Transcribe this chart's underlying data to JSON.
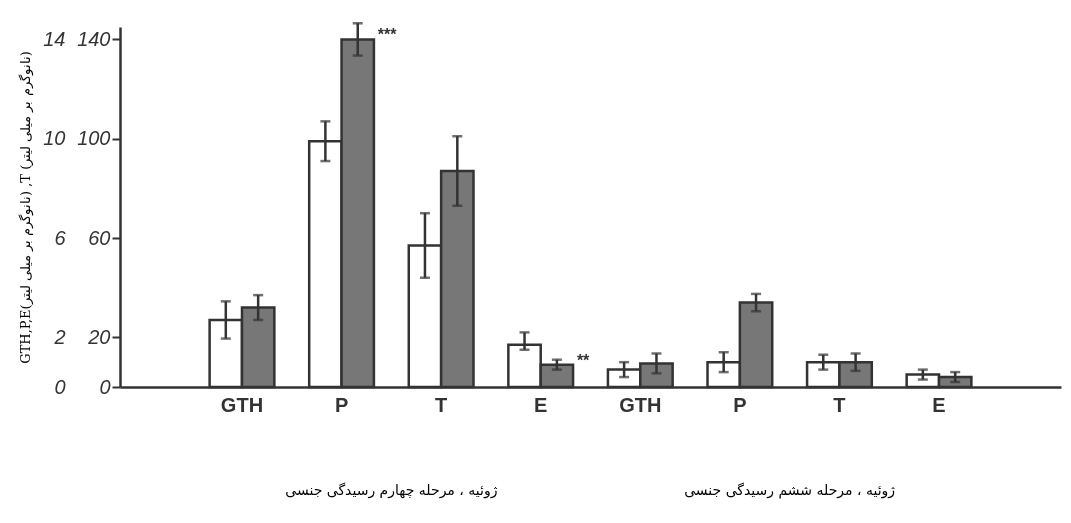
{
  "chart_data": {
    "type": "bar",
    "ylabel": "GTH,P,E(نانوگرم بر میلی لیتر) ,T (نانوگرم بر میلی لیتر)",
    "categories": [
      "GTH",
      "P",
      "T",
      "E",
      "GTH",
      "P",
      "T",
      "E"
    ],
    "series": [
      {
        "color": "#ffffff",
        "values": [
          2.7,
          9.9,
          5.7,
          1.7,
          0.7,
          1.0,
          1.0,
          0.5
        ],
        "errors": [
          0.75,
          0.8,
          1.3,
          [
            1.5,
            2.2
          ],
          0.3,
          0.4,
          0.3,
          0.2
        ]
      },
      {
        "color": "#777777",
        "values": [
          3.2,
          14.0,
          8.7,
          0.9,
          0.95,
          3.4,
          1.0,
          0.4
        ],
        "errors": [
          0.5,
          0.65,
          1.4,
          0.2,
          0.4,
          0.35,
          0.35,
          0.2
        ]
      }
    ],
    "ylim": [
      0,
      14.5
    ],
    "yticks": [
      0,
      2,
      6,
      10,
      14
    ],
    "y2lim": [
      0,
      145
    ],
    "y2ticks": [
      0,
      20,
      60,
      100,
      140
    ],
    "grid": false,
    "legend": false,
    "annotations": [
      {
        "text": "***",
        "x": "P",
        "y": 14.0
      },
      {
        "text": "**",
        "x": "E",
        "y": 0.9
      },
      "ژوئیه ، مرحله چهارم رسیدگی جنسی",
      "ژوئیه ، مرحله ششم رسیدگی جنسی"
    ]
  }
}
